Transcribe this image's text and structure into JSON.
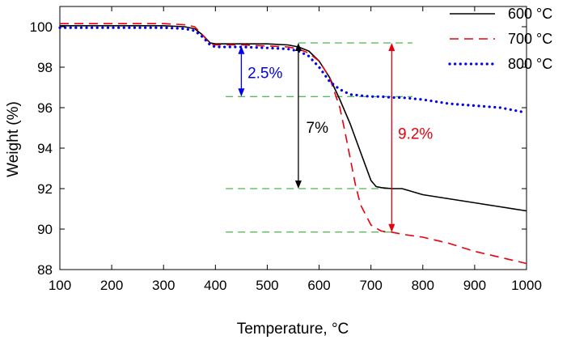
{
  "chart_data": {
    "type": "line",
    "xlabel": "Temperature, °C",
    "ylabel": "Weight (%)",
    "xlim": [
      100,
      1000
    ],
    "ylim": [
      88,
      101
    ],
    "xticks": [
      100,
      200,
      300,
      400,
      500,
      600,
      700,
      800,
      900,
      1000
    ],
    "yticks": [
      88,
      90,
      92,
      94,
      96,
      98,
      100
    ],
    "grid": false,
    "legend_position": "top-right",
    "series": [
      {
        "name": "600 °C",
        "color": "#000000",
        "dash": "solid",
        "x": [
          100,
          200,
          300,
          340,
          360,
          375,
          390,
          400,
          450,
          500,
          540,
          560,
          580,
          600,
          620,
          640,
          660,
          680,
          700,
          710,
          720,
          740,
          760,
          800,
          850,
          900,
          950,
          1000
        ],
        "y": [
          100.05,
          100.05,
          100.05,
          100.0,
          99.9,
          99.6,
          99.2,
          99.15,
          99.15,
          99.15,
          99.1,
          99.0,
          98.8,
          98.3,
          97.5,
          96.4,
          95.2,
          93.8,
          92.4,
          92.1,
          92.05,
          92.0,
          92.0,
          91.7,
          91.5,
          91.3,
          91.1,
          90.9
        ]
      },
      {
        "name": "700 °C",
        "color": "#e8000b",
        "dash": "dashed",
        "x": [
          100,
          200,
          300,
          340,
          360,
          375,
          390,
          400,
          450,
          500,
          540,
          560,
          580,
          600,
          620,
          640,
          650,
          660,
          670,
          680,
          700,
          720,
          740,
          760,
          800,
          850,
          900,
          950,
          1000
        ],
        "y": [
          100.15,
          100.15,
          100.15,
          100.1,
          100.0,
          99.6,
          99.15,
          99.1,
          99.1,
          99.05,
          99.0,
          98.9,
          98.7,
          98.3,
          97.5,
          96.0,
          94.8,
          93.5,
          92.2,
          91.2,
          90.2,
          89.9,
          89.85,
          89.75,
          89.6,
          89.3,
          88.9,
          88.6,
          88.3
        ]
      },
      {
        "name": "800 °C",
        "color": "#0000ee",
        "dash": "dotted",
        "x": [
          100,
          200,
          300,
          340,
          360,
          375,
          390,
          400,
          450,
          500,
          540,
          560,
          580,
          600,
          620,
          640,
          660,
          680,
          700,
          720,
          740,
          760,
          800,
          850,
          900,
          950,
          990
        ],
        "y": [
          99.95,
          99.95,
          99.95,
          99.9,
          99.8,
          99.5,
          99.1,
          99.0,
          99.0,
          98.95,
          98.9,
          98.8,
          98.55,
          98.0,
          97.3,
          96.9,
          96.65,
          96.6,
          96.55,
          96.55,
          96.5,
          96.5,
          96.4,
          96.2,
          96.1,
          96.0,
          95.8
        ]
      }
    ],
    "guides": [
      {
        "x": [
          560,
          780
        ],
        "y": 99.2
      },
      {
        "x": [
          420,
          780
        ],
        "y": 96.55
      },
      {
        "x": [
          420,
          740
        ],
        "y": 92.0
      },
      {
        "x": [
          420,
          740
        ],
        "y": 89.85
      }
    ],
    "annotations": [
      {
        "text": "2.5%",
        "color": "#0000ee",
        "arrow_x": 450,
        "arrow_y": [
          99.05,
          96.55
        ],
        "label_x": 462,
        "label_y": 97.75
      },
      {
        "text": "7%",
        "color": "#000000",
        "arrow_x": 560,
        "arrow_y": [
          99.2,
          92.0
        ],
        "label_x": 575,
        "label_y": 95.05
      },
      {
        "text": "9.2%",
        "color": "#e8000b",
        "arrow_x": 740,
        "arrow_y": [
          99.2,
          89.85
        ],
        "label_x": 752,
        "label_y": 94.75
      }
    ]
  }
}
